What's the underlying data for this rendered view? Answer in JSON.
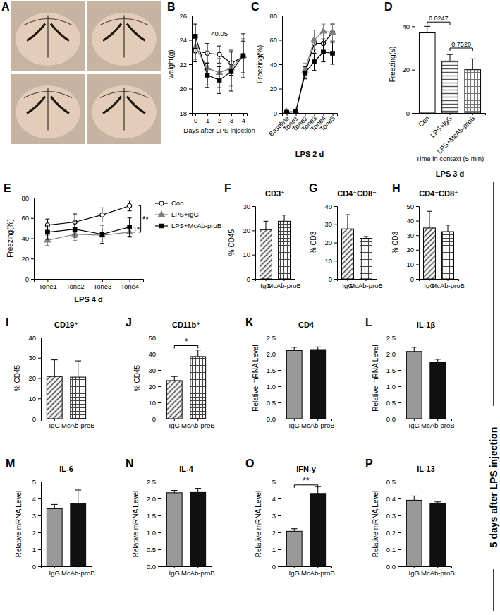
{
  "side_label": "5 days after LPS injection",
  "image": {
    "panel": "A"
  },
  "chart_data": [
    {
      "panel": "B",
      "type": "line",
      "ylabel": "weight(g)",
      "xlabel": "Days after LPS injection",
      "x": [
        0,
        1,
        2,
        3,
        4
      ],
      "xlim": [
        -0.3,
        4.3
      ],
      "xticks": [
        0,
        1,
        2,
        3,
        4
      ],
      "ylim": [
        18,
        26
      ],
      "yticks": [
        18,
        20,
        22,
        24,
        26
      ],
      "series": [
        {
          "color": "#000000",
          "marker": "open_circle",
          "values": [
            23.1,
            22.9,
            22.8,
            22.1,
            22.6
          ],
          "errors": [
            0.9,
            0.8,
            0.7,
            1.0,
            1.3
          ]
        },
        {
          "color": "#808080",
          "marker": "triangle",
          "values": [
            23.4,
            21.7,
            21.3,
            21.7,
            22.7
          ],
          "errors": [
            1.0,
            1.4,
            1.2,
            1.5,
            1.4
          ]
        },
        {
          "color": "#000000",
          "marker": "square",
          "values": [
            24.3,
            21.1,
            20.7,
            21.4,
            22.7
          ],
          "errors": [
            1.0,
            1.0,
            1.1,
            1.6,
            1.8
          ]
        }
      ],
      "annotations": [
        {
          "text": "<0.05",
          "x": 2,
          "y": 24.3
        }
      ]
    },
    {
      "panel": "C",
      "type": "line",
      "ylabel": "Freezing(%)",
      "subtitle": "LPS 2 d",
      "categories": [
        "Baseline",
        "Tone1",
        "Tone2",
        "Tone3",
        "Tone4",
        "Tone5"
      ],
      "ylim": [
        0,
        80
      ],
      "yticks": [
        0,
        20,
        40,
        60,
        80
      ],
      "series": [
        {
          "color": "#000000",
          "marker": "open_circle",
          "values": [
            1,
            1,
            32,
            57,
            57,
            66
          ],
          "errors": [
            1,
            1,
            5,
            7,
            7,
            7
          ]
        },
        {
          "color": "#808080",
          "marker": "triangle",
          "values": [
            1,
            1,
            35,
            60,
            67,
            66
          ],
          "errors": [
            1,
            1,
            6,
            8,
            6,
            7
          ]
        },
        {
          "color": "#000000",
          "marker": "square",
          "values": [
            0.5,
            1,
            33,
            42,
            50,
            49
          ],
          "errors": [
            0.5,
            1,
            5,
            7,
            8,
            9
          ]
        }
      ]
    },
    {
      "panel": "D",
      "type": "bar",
      "ylabel": "Freezing(s)",
      "xlabel": "Time in context (5 min)",
      "subtitle": "LPS 3 d",
      "categories": [
        "Con",
        "LPS+IgG",
        "LPS+McAb-proB"
      ],
      "values": [
        37,
        24,
        20
      ],
      "errors": [
        3,
        3,
        5
      ],
      "colors": [
        "#ffffff",
        "#555555",
        "#777777"
      ],
      "ylim": [
        0,
        45
      ],
      "yticks": [
        0,
        20,
        40
      ],
      "annotations": [
        {
          "text": "0.0247",
          "x": [
            0,
            1
          ],
          "y": 42
        },
        {
          "text": "0.7520",
          "x": [
            1,
            2
          ],
          "y": 30
        }
      ]
    },
    {
      "panel": "E",
      "type": "line",
      "ylabel": "Freezing(%)",
      "subtitle": "LPS 4 d",
      "categories": [
        "Tone1",
        "Tone2",
        "Tone3",
        "Tone4"
      ],
      "ylim": [
        0,
        80
      ],
      "yticks": [
        0,
        20,
        40,
        60,
        80
      ],
      "legend": "right",
      "series": [
        {
          "name": "Con",
          "color": "#000000",
          "marker": "open_circle",
          "values": [
            53,
            56,
            63,
            72
          ],
          "errors": [
            6,
            8,
            7,
            5
          ]
        },
        {
          "name": "LPS+IgG",
          "color": "#808080",
          "marker": "triangle",
          "values": [
            38,
            44,
            43,
            46
          ],
          "errors": [
            5,
            6,
            6,
            5
          ]
        },
        {
          "name": "LPS+McAb-proB",
          "color": "#000000",
          "marker": "square",
          "values": [
            46,
            49,
            44,
            51
          ],
          "errors": [
            7,
            8,
            9,
            9
          ]
        }
      ],
      "annotations": [
        {
          "text": "*",
          "x": 3,
          "y": [
            46,
            51
          ]
        },
        {
          "text": "**",
          "x": 3,
          "y": [
            46,
            72
          ]
        }
      ]
    },
    {
      "panel": "F",
      "type": "bar",
      "title": "CD3⁺",
      "ylabel": "% CD45",
      "categories": [
        "IgG",
        "McAb-proB"
      ],
      "values": [
        20.3,
        23.8
      ],
      "errors": [
        3.5,
        2.5
      ],
      "colors": [
        "#444444",
        "#444444"
      ],
      "ylim": [
        0,
        30
      ],
      "yticks": [
        0,
        10,
        20,
        30
      ]
    },
    {
      "panel": "G",
      "type": "bar",
      "title": "CD4⁺CD8⁻",
      "ylabel": "% CD3",
      "categories": [
        "IgG",
        "McAb-proB"
      ],
      "values": [
        27.5,
        22.3
      ],
      "errors": [
        7.8,
        1.0
      ],
      "colors": [
        "#444444",
        "#444444"
      ],
      "ylim": [
        0,
        40
      ],
      "yticks": [
        0,
        10,
        20,
        30,
        40
      ]
    },
    {
      "panel": "H",
      "type": "bar",
      "title": "CD4⁻CD8⁺",
      "ylabel": "% CD3",
      "categories": [
        "IgG",
        "McAb-proB"
      ],
      "values": [
        35,
        32.5
      ],
      "errors": [
        11.5,
        4.5
      ],
      "colors": [
        "#444444",
        "#444444"
      ],
      "ylim": [
        0,
        50
      ],
      "yticks": [
        0,
        10,
        20,
        30,
        40,
        50
      ]
    },
    {
      "panel": "I",
      "type": "bar",
      "title": "CD19⁺",
      "ylabel": "% CD45",
      "categories": [
        "IgG",
        "McAb-proB"
      ],
      "values": [
        20.8,
        20.5
      ],
      "errors": [
        8.2,
        8.0
      ],
      "colors": [
        "#444444",
        "#444444"
      ],
      "ylim": [
        0,
        40
      ],
      "yticks": [
        0,
        10,
        20,
        30,
        40
      ]
    },
    {
      "panel": "J",
      "type": "bar",
      "title": "CD11b⁺",
      "ylabel": "% CD45",
      "categories": [
        "IgG",
        "McAb-proB"
      ],
      "values": [
        23.5,
        38.3
      ],
      "errors": [
        2.5,
        4.0
      ],
      "colors": [
        "#444444",
        "#444444"
      ],
      "ylim": [
        0,
        50
      ],
      "yticks": [
        0,
        10,
        20,
        30,
        40,
        50
      ],
      "annotations": [
        {
          "text": "*",
          "x": [
            0,
            1
          ],
          "y": 45
        }
      ]
    },
    {
      "panel": "K",
      "type": "bar",
      "title": "CD4",
      "ylabel": "Relative mRNA Level",
      "categories": [
        "IgG",
        "McAb-proB"
      ],
      "values": [
        2.1,
        2.13
      ],
      "errors": [
        0.1,
        0.08
      ],
      "colors": [
        "#999999",
        "#111111"
      ],
      "ylim": [
        0,
        2.5
      ],
      "yticks": [
        {
          "value": 0,
          "label": "0.0"
        },
        0.5,
        {
          "value": 1,
          "label": "1.0"
        },
        1.5,
        {
          "value": 2,
          "label": "2.0"
        },
        2.5
      ]
    },
    {
      "panel": "L",
      "type": "bar",
      "title": "IL-1β",
      "ylabel": "Relative mRNA Level",
      "categories": [
        "IgG",
        "McAb-proB"
      ],
      "values": [
        2.07,
        1.73
      ],
      "errors": [
        0.13,
        0.1
      ],
      "colors": [
        "#999999",
        "#111111"
      ],
      "ylim": [
        0,
        2.5
      ],
      "yticks": [
        {
          "value": 0,
          "label": "0.0"
        },
        0.5,
        {
          "value": 1,
          "label": "1.0"
        },
        1.5,
        {
          "value": 2,
          "label": "2.0"
        },
        2.5
      ]
    },
    {
      "panel": "M",
      "type": "bar",
      "title": "IL-6",
      "ylabel": "Relative mRNA Level",
      "categories": [
        "IgG",
        "McAb-proB"
      ],
      "values": [
        3.4,
        3.7
      ],
      "errors": [
        0.25,
        0.8
      ],
      "colors": [
        "#999999",
        "#111111"
      ],
      "ylim": [
        0,
        5
      ],
      "yticks": [
        0,
        1,
        2,
        3,
        4,
        5
      ]
    },
    {
      "panel": "N",
      "type": "bar",
      "title": "IL-4",
      "ylabel": "Relative mRNA Level",
      "categories": [
        "IgG",
        "McAb-proB"
      ],
      "values": [
        2.17,
        2.18
      ],
      "errors": [
        0.07,
        0.12
      ],
      "colors": [
        "#999999",
        "#111111"
      ],
      "ylim": [
        0,
        2.5
      ],
      "yticks": [
        {
          "value": 0,
          "label": "0.0"
        },
        0.5,
        {
          "value": 1,
          "label": "1.0"
        },
        1.5,
        {
          "value": 2,
          "label": "2.0"
        },
        2.5
      ]
    },
    {
      "panel": "O",
      "type": "bar",
      "title": "IFN-γ",
      "ylabel": "Relative mRNA Level",
      "categories": [
        "IgG",
        "McAb-proB"
      ],
      "values": [
        2.07,
        4.3
      ],
      "errors": [
        0.15,
        0.4
      ],
      "colors": [
        "#999999",
        "#111111"
      ],
      "ylim": [
        0,
        5
      ],
      "yticks": [
        0,
        1,
        2,
        3,
        4,
        5
      ],
      "annotations": [
        {
          "text": "**",
          "x": [
            0,
            1
          ],
          "y": 4.8
        }
      ]
    },
    {
      "panel": "P",
      "type": "bar",
      "title": "IL-13",
      "ylabel": "Relative mRNA Level",
      "categories": [
        "IgG",
        "McAb-proB"
      ],
      "values": [
        0.39,
        0.37
      ],
      "errors": [
        0.025,
        0.01
      ],
      "colors": [
        "#999999",
        "#111111"
      ],
      "ylim": [
        0,
        0.5
      ],
      "yticks": [
        {
          "value": 0,
          "label": "0.0"
        },
        0.1,
        0.2,
        0.3,
        0.4,
        0.5
      ]
    }
  ]
}
